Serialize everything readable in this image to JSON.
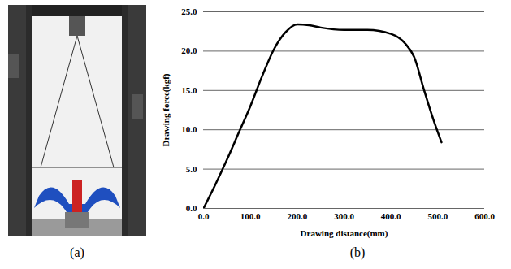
{
  "panel_labels": [
    "(a)",
    "(b)"
  ],
  "chart_data": {
    "type": "line",
    "x_label": "Drawing distance(mm)",
    "y_label": "Drawing force(kgf)",
    "x": [
      0,
      25,
      50,
      75,
      100,
      125,
      150,
      175,
      200,
      225,
      250,
      300,
      350,
      400,
      430,
      450,
      470,
      490,
      508
    ],
    "values": [
      0,
      3.0,
      6.2,
      9.6,
      13.0,
      16.8,
      20.2,
      22.4,
      23.4,
      23.3,
      23.0,
      22.7,
      22.7,
      22.2,
      21.0,
      19.2,
      15.2,
      11.4,
      8.4
    ],
    "color": "#000000",
    "xlim": [
      0,
      600
    ],
    "xticks": [
      {
        "value": 0,
        "label": "0.0"
      },
      {
        "value": 100,
        "label": "100.0"
      },
      {
        "value": 200,
        "label": "200.0"
      },
      {
        "value": 300,
        "label": "300.0"
      },
      {
        "value": 400,
        "label": "400.0"
      },
      {
        "value": 500,
        "label": "500.0"
      },
      {
        "value": 600,
        "label": "600.0"
      }
    ],
    "ylim": [
      0,
      25
    ],
    "yticks": [
      {
        "value": 0,
        "label": "0.0"
      },
      {
        "value": 5,
        "label": "5.0"
      },
      {
        "value": 10,
        "label": "10.0"
      },
      {
        "value": 15,
        "label": "15.0"
      },
      {
        "value": 20,
        "label": "20.0"
      },
      {
        "value": 25,
        "label": "25.0"
      }
    ],
    "grid": true
  }
}
